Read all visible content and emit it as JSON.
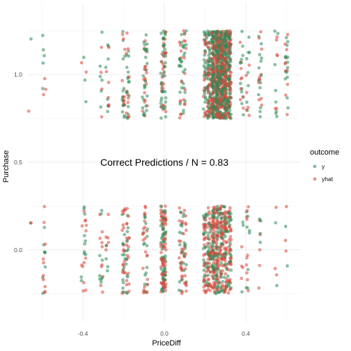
{
  "chart_data": {
    "type": "scatter",
    "title": "",
    "xlabel": "PriceDiff",
    "ylabel": "Purchase",
    "xlim": [
      -0.67,
      0.67
    ],
    "ylim": [
      -0.41,
      1.41
    ],
    "x_ticks": [
      -0.4,
      0.0,
      0.4
    ],
    "x_tick_labels": [
      "-0.4",
      "0.0",
      "0.4"
    ],
    "y_ticks": [
      0.0,
      0.5,
      1.0
    ],
    "y_tick_labels": [
      "0.0",
      "0.5",
      "1.0"
    ],
    "grid": true,
    "legend": {
      "title": "outcome",
      "placement": "right",
      "entries": [
        {
          "name": "y",
          "color": "#2e8b57"
        },
        {
          "name": "yhat",
          "color": "#d9473b"
        }
      ]
    },
    "annotation": {
      "text": "Correct Predictions / N =  0.83",
      "x": 0.0,
      "y": 0.5
    },
    "jitter": {
      "x": 0.008,
      "y": 0.25
    },
    "x_levels": [
      -0.66,
      -0.59,
      -0.4,
      -0.39,
      -0.31,
      -0.28,
      -0.2,
      -0.18,
      -0.1,
      -0.09,
      -0.01,
      0.0,
      0.08,
      0.1,
      0.2,
      0.22,
      0.24,
      0.26,
      0.28,
      0.3,
      0.32,
      0.38,
      0.41,
      0.47,
      0.55,
      0.6
    ],
    "series": [
      {
        "name": "y",
        "color": "#2e8b57",
        "counts_y0": [
          1,
          8,
          3,
          8,
          9,
          4,
          14,
          12,
          6,
          10,
          22,
          34,
          14,
          12,
          24,
          26,
          40,
          36,
          30,
          30,
          26,
          3,
          8,
          4,
          2,
          2
        ],
        "counts_y1": [
          1,
          5,
          1,
          2,
          6,
          8,
          15,
          16,
          12,
          14,
          18,
          22,
          14,
          16,
          30,
          48,
          96,
          118,
          110,
          96,
          70,
          12,
          8,
          14,
          8,
          14
        ]
      },
      {
        "name": "yhat",
        "color": "#d9473b",
        "counts_y0": [
          1,
          10,
          3,
          10,
          10,
          6,
          20,
          18,
          10,
          14,
          30,
          46,
          22,
          18,
          34,
          38,
          56,
          50,
          44,
          42,
          36,
          4,
          10,
          5,
          3,
          3
        ],
        "counts_y1": [
          1,
          3,
          1,
          1,
          4,
          6,
          10,
          11,
          8,
          10,
          12,
          16,
          10,
          11,
          22,
          36,
          80,
          100,
          94,
          82,
          60,
          9,
          6,
          11,
          6,
          11
        ]
      }
    ]
  }
}
